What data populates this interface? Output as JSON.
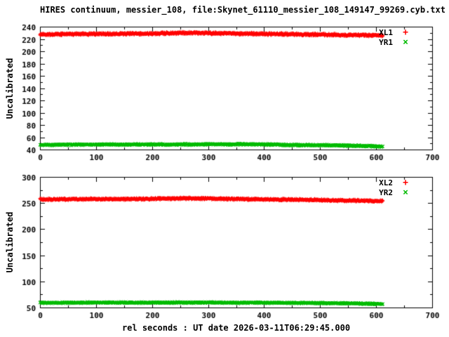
{
  "title": "HIRES continuum, messier_108, file:Skynet_61110_messier_108_149147_99269.cyb.txt",
  "xlabel": "rel seconds : UT date 2026-03-11T06:29:45.000",
  "colors": {
    "background": "#ffffff",
    "frame": "#000000",
    "text": "#000000",
    "series_red": "#ff0000",
    "series_green": "#00bb00"
  },
  "chart_data": [
    {
      "type": "scatter",
      "ylabel": "Uncalibrated",
      "xlim": [
        0,
        700
      ],
      "x_tick_step": 100,
      "x_minor_step": 50,
      "ylim": [
        40,
        240
      ],
      "y_tick_step": 20,
      "y_minor_step": 10,
      "x_data_end": 612,
      "grid": false,
      "legend_position": "top-right",
      "series": [
        {
          "name": "XL1",
          "marker": "+",
          "color": "#ff0000",
          "points": 1400,
          "spread": 2.2,
          "trend": [
            [
              0,
              227.5
            ],
            [
              100,
              228.2
            ],
            [
              200,
              228.8
            ],
            [
              270,
              230.0
            ],
            [
              300,
              229.6
            ],
            [
              400,
              228.2
            ],
            [
              500,
              227.2
            ],
            [
              560,
              226.3
            ],
            [
              612,
              225.6
            ]
          ]
        },
        {
          "name": "YR1",
          "marker": "×",
          "color": "#00bb00",
          "points": 1400,
          "spread": 1.8,
          "trend": [
            [
              0,
              47.5
            ],
            [
              100,
              48.2
            ],
            [
              200,
              48.2
            ],
            [
              300,
              48.4
            ],
            [
              380,
              48.6
            ],
            [
              450,
              47.4
            ],
            [
              520,
              47.0
            ],
            [
              570,
              46.0
            ],
            [
              612,
              44.8
            ]
          ]
        }
      ]
    },
    {
      "type": "scatter",
      "ylabel": "Uncalibrated",
      "xlim": [
        0,
        700
      ],
      "x_tick_step": 100,
      "x_minor_step": 50,
      "ylim": [
        50,
        300
      ],
      "y_tick_step": 50,
      "y_minor_step": 25,
      "x_data_end": 612,
      "grid": false,
      "legend_position": "top-right",
      "series": [
        {
          "name": "XL2",
          "marker": "+",
          "color": "#ff0000",
          "points": 1400,
          "spread": 2.3,
          "trend": [
            [
              0,
              257.0
            ],
            [
              100,
              257.5
            ],
            [
              200,
              258.0
            ],
            [
              270,
              259.2
            ],
            [
              320,
              258.2
            ],
            [
              400,
              257.0
            ],
            [
              500,
              255.8
            ],
            [
              560,
              254.6
            ],
            [
              612,
              253.8
            ]
          ]
        },
        {
          "name": "YR2",
          "marker": "×",
          "color": "#00bb00",
          "points": 1400,
          "spread": 2.0,
          "trend": [
            [
              0,
              59.0
            ],
            [
              100,
              59.3
            ],
            [
              200,
              59.3
            ],
            [
              300,
              59.5
            ],
            [
              400,
              59.0
            ],
            [
              500,
              58.6
            ],
            [
              560,
              58.0
            ],
            [
              612,
              56.5
            ]
          ]
        }
      ]
    }
  ]
}
